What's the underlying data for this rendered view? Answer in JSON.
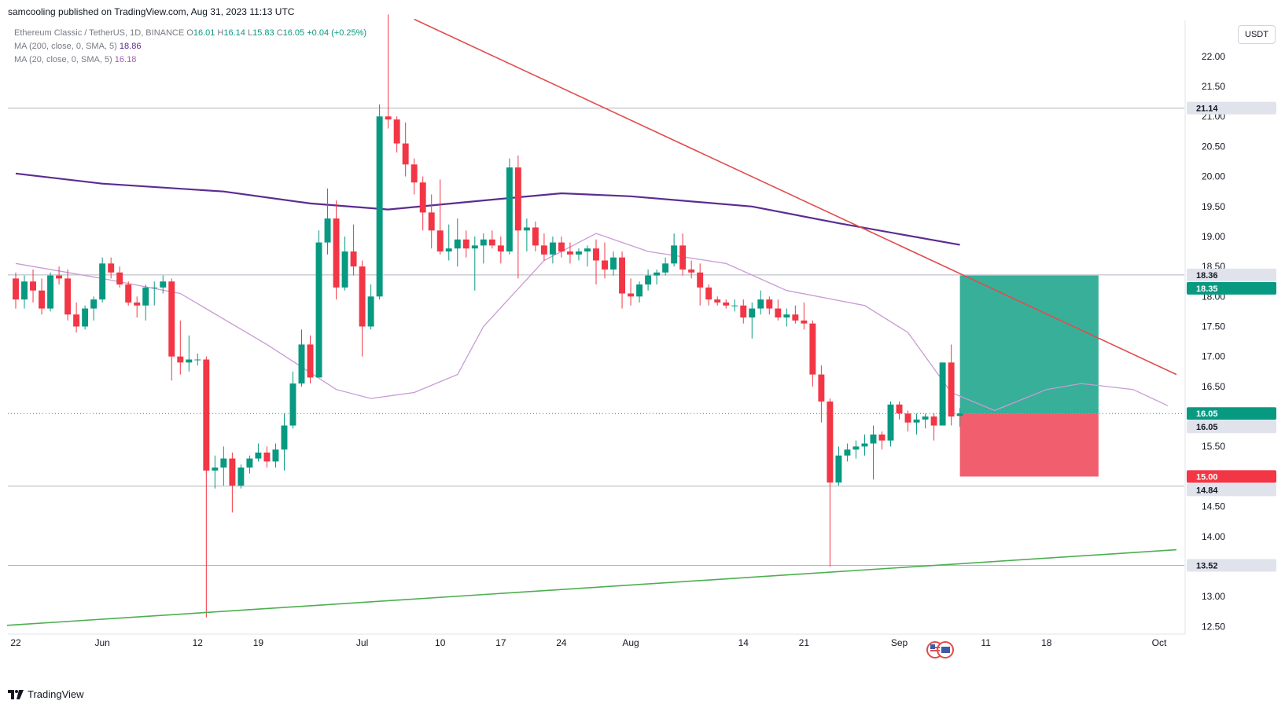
{
  "header": {
    "published": "samcooling published on TradingView.com, Aug 31, 2023 11:13 UTC"
  },
  "legend": {
    "symbol": "Ethereum Classic / TetherUS, 1D, BINANCE",
    "o_label": "O",
    "o": "16.01",
    "h_label": "H",
    "h": "16.14",
    "l_label": "L",
    "l": "15.83",
    "c_label": "C",
    "c": "16.05",
    "change": "+0.04 (+0.25%)",
    "ma200_label": "MA (200, close, 0, SMA, 5)",
    "ma200_value": "18.86",
    "ma20_label": "MA (20, close, 0, SMA, 5)",
    "ma20_value": "16.18"
  },
  "currency_button": "USDT",
  "footer": {
    "brand": "TradingView",
    "logo_icon": "tradingview-logo-icon",
    "event_icon": "us-eu-flags-event-icon"
  },
  "colors": {
    "up": "#089981",
    "down": "#f23645",
    "ma200": "#5b2c91",
    "ma20": "#c99bd6",
    "trend_down": "#e14d4d",
    "trend_up": "#4caf50",
    "profit": "#22a68e",
    "stop": "#f05566"
  },
  "chart_data": {
    "type": "candlestick",
    "x_tick_labels": [
      "22",
      "Jun",
      "12",
      "19",
      "Jul",
      "10",
      "17",
      "24",
      "Aug",
      "14",
      "21",
      "Sep",
      "11",
      "18",
      "Oct"
    ],
    "x_ticks": [
      "2023-05-22",
      "2023-06-01",
      "2023-06-12",
      "2023-06-19",
      "2023-07-01",
      "2023-07-10",
      "2023-07-17",
      "2023-07-24",
      "2023-08-01",
      "2023-08-14",
      "2023-08-21",
      "2023-09-01",
      "2023-09-11",
      "2023-09-18",
      "2023-10-01"
    ],
    "y_tick_labels": [
      "12.50",
      "13.00",
      "13.50",
      "14.00",
      "14.50",
      "15.00",
      "15.50",
      "16.00",
      "16.50",
      "17.00",
      "17.50",
      "18.00",
      "18.50",
      "19.00",
      "19.50",
      "20.00",
      "20.50",
      "21.00",
      "21.50",
      "22.00"
    ],
    "ylim": [
      12.4,
      22.6
    ],
    "xlim": [
      "2023-05-22",
      "2023-10-03"
    ],
    "horizontal_levels": [
      21.14,
      18.36,
      14.84,
      13.52
    ],
    "price_labels": [
      {
        "value": "21.14",
        "style": "level"
      },
      {
        "value": "18.36",
        "style": "level"
      },
      {
        "value": "18.35",
        "style": "target"
      },
      {
        "value": "16.05",
        "style": "last"
      },
      {
        "value": "16.05",
        "style": "level"
      },
      {
        "value": "15.00",
        "style": "stop"
      },
      {
        "value": "14.84",
        "style": "level"
      },
      {
        "value": "13.52",
        "style": "level"
      }
    ],
    "last_price": 16.05,
    "candles": [
      [
        "2023-05-22",
        18.3,
        18.4,
        17.8,
        17.95
      ],
      [
        "2023-05-23",
        17.95,
        18.35,
        17.8,
        18.25
      ],
      [
        "2023-05-24",
        18.25,
        18.45,
        17.9,
        18.1
      ],
      [
        "2023-05-25",
        18.1,
        18.3,
        17.7,
        17.8
      ],
      [
        "2023-05-26",
        17.8,
        18.4,
        17.75,
        18.35
      ],
      [
        "2023-05-27",
        18.35,
        18.5,
        18.2,
        18.3
      ],
      [
        "2023-05-28",
        18.3,
        18.45,
        17.6,
        17.7
      ],
      [
        "2023-05-29",
        17.7,
        17.9,
        17.4,
        17.5
      ],
      [
        "2023-05-30",
        17.5,
        17.85,
        17.45,
        17.8
      ],
      [
        "2023-05-31",
        17.8,
        18.0,
        17.6,
        17.95
      ],
      [
        "2023-06-01",
        17.95,
        18.65,
        17.9,
        18.55
      ],
      [
        "2023-06-02",
        18.55,
        18.65,
        18.3,
        18.4
      ],
      [
        "2023-06-03",
        18.4,
        18.5,
        18.15,
        18.2
      ],
      [
        "2023-06-04",
        18.2,
        18.25,
        17.85,
        17.9
      ],
      [
        "2023-06-05",
        17.9,
        18.0,
        17.65,
        17.85
      ],
      [
        "2023-06-06",
        17.85,
        18.2,
        17.6,
        18.15
      ],
      [
        "2023-06-07",
        18.15,
        18.25,
        17.85,
        18.15
      ],
      [
        "2023-06-08",
        18.15,
        18.35,
        18.05,
        18.25
      ],
      [
        "2023-06-09",
        18.25,
        18.3,
        16.6,
        17.0
      ],
      [
        "2023-06-10",
        17.0,
        17.6,
        16.7,
        16.9
      ],
      [
        "2023-06-11",
        16.9,
        17.35,
        16.75,
        16.95
      ],
      [
        "2023-06-12",
        16.95,
        17.05,
        16.85,
        16.95
      ],
      [
        "2023-06-13",
        16.95,
        17.0,
        12.65,
        15.1
      ],
      [
        "2023-06-14",
        15.1,
        15.35,
        14.8,
        15.15
      ],
      [
        "2023-06-15",
        15.15,
        15.5,
        14.85,
        15.3
      ],
      [
        "2023-06-16",
        15.3,
        15.4,
        14.4,
        14.85
      ],
      [
        "2023-06-17",
        14.85,
        15.2,
        14.8,
        15.15
      ],
      [
        "2023-06-18",
        15.15,
        15.35,
        15.05,
        15.3
      ],
      [
        "2023-06-19",
        15.3,
        15.55,
        15.25,
        15.4
      ],
      [
        "2023-06-20",
        15.4,
        15.5,
        15.15,
        15.25
      ],
      [
        "2023-06-21",
        15.25,
        15.55,
        15.15,
        15.45
      ],
      [
        "2023-06-22",
        15.45,
        16.05,
        15.1,
        15.85
      ],
      [
        "2023-06-23",
        15.85,
        16.75,
        15.8,
        16.55
      ],
      [
        "2023-06-24",
        16.55,
        17.45,
        16.5,
        17.2
      ],
      [
        "2023-06-25",
        17.2,
        17.35,
        16.55,
        16.65
      ],
      [
        "2023-06-26",
        16.65,
        19.1,
        16.65,
        18.9
      ],
      [
        "2023-06-27",
        18.9,
        19.8,
        18.7,
        19.3
      ],
      [
        "2023-06-28",
        19.3,
        19.6,
        17.95,
        18.15
      ],
      [
        "2023-06-29",
        18.15,
        19.0,
        18.1,
        18.75
      ],
      [
        "2023-06-30",
        18.75,
        19.2,
        18.35,
        18.5
      ],
      [
        "2023-07-01",
        18.5,
        18.6,
        17.0,
        17.5
      ],
      [
        "2023-07-02",
        17.5,
        18.2,
        17.45,
        18.0
      ],
      [
        "2023-07-03",
        18.0,
        21.2,
        17.95,
        21.0
      ],
      [
        "2023-07-04",
        21.0,
        22.7,
        20.8,
        20.95
      ],
      [
        "2023-07-05",
        20.95,
        21.0,
        20.4,
        20.55
      ],
      [
        "2023-07-06",
        20.55,
        20.9,
        20.0,
        20.2
      ],
      [
        "2023-07-07",
        20.2,
        20.3,
        19.7,
        19.9
      ],
      [
        "2023-07-08",
        19.9,
        20.0,
        19.1,
        19.4
      ],
      [
        "2023-07-09",
        19.4,
        19.7,
        18.8,
        19.1
      ],
      [
        "2023-07-10",
        19.1,
        19.95,
        18.7,
        18.75
      ],
      [
        "2023-07-11",
        18.75,
        19.2,
        18.6,
        18.8
      ],
      [
        "2023-07-12",
        18.8,
        19.3,
        18.5,
        18.95
      ],
      [
        "2023-07-13",
        18.95,
        19.1,
        18.65,
        18.8
      ],
      [
        "2023-07-14",
        18.8,
        19.0,
        18.1,
        18.85
      ],
      [
        "2023-07-15",
        18.85,
        19.05,
        18.55,
        18.95
      ],
      [
        "2023-07-16",
        18.95,
        19.1,
        18.8,
        18.85
      ],
      [
        "2023-07-17",
        18.85,
        19.0,
        18.55,
        18.75
      ],
      [
        "2023-07-18",
        18.75,
        20.3,
        18.7,
        20.15
      ],
      [
        "2023-07-19",
        20.15,
        20.35,
        18.3,
        19.1
      ],
      [
        "2023-07-20",
        19.1,
        19.3,
        18.75,
        19.15
      ],
      [
        "2023-07-21",
        19.15,
        19.25,
        18.75,
        18.85
      ],
      [
        "2023-07-22",
        18.85,
        19.05,
        18.6,
        18.7
      ],
      [
        "2023-07-23",
        18.7,
        19.0,
        18.55,
        18.9
      ],
      [
        "2023-07-24",
        18.9,
        19.0,
        18.65,
        18.75
      ],
      [
        "2023-07-25",
        18.75,
        18.9,
        18.55,
        18.7
      ],
      [
        "2023-07-26",
        18.7,
        18.8,
        18.6,
        18.75
      ],
      [
        "2023-07-27",
        18.75,
        18.85,
        18.5,
        18.8
      ],
      [
        "2023-07-28",
        18.8,
        18.95,
        18.2,
        18.6
      ],
      [
        "2023-07-29",
        18.6,
        18.9,
        18.3,
        18.45
      ],
      [
        "2023-07-30",
        18.45,
        18.75,
        18.35,
        18.65
      ],
      [
        "2023-07-31",
        18.65,
        18.75,
        17.8,
        18.05
      ],
      [
        "2023-08-01",
        18.05,
        18.3,
        17.85,
        18.0
      ],
      [
        "2023-08-02",
        18.0,
        18.25,
        17.9,
        18.2
      ],
      [
        "2023-08-03",
        18.2,
        18.45,
        18.1,
        18.35
      ],
      [
        "2023-08-04",
        18.35,
        18.45,
        18.2,
        18.4
      ],
      [
        "2023-08-05",
        18.4,
        18.65,
        18.35,
        18.55
      ],
      [
        "2023-08-06",
        18.55,
        19.05,
        18.5,
        18.85
      ],
      [
        "2023-08-07",
        18.85,
        19.05,
        18.35,
        18.45
      ],
      [
        "2023-08-08",
        18.45,
        18.6,
        18.3,
        18.4
      ],
      [
        "2023-08-09",
        18.4,
        18.55,
        17.85,
        18.15
      ],
      [
        "2023-08-10",
        18.15,
        18.2,
        17.85,
        17.95
      ],
      [
        "2023-08-11",
        17.95,
        18.0,
        17.85,
        17.9
      ],
      [
        "2023-08-12",
        17.9,
        17.95,
        17.8,
        17.85
      ],
      [
        "2023-08-13",
        17.85,
        17.95,
        17.75,
        17.85
      ],
      [
        "2023-08-14",
        17.85,
        17.95,
        17.55,
        17.65
      ],
      [
        "2023-08-15",
        17.65,
        17.9,
        17.3,
        17.8
      ],
      [
        "2023-08-16",
        17.8,
        18.1,
        17.7,
        17.95
      ],
      [
        "2023-08-17",
        17.95,
        18.0,
        17.7,
        17.8
      ],
      [
        "2023-08-18",
        17.8,
        17.95,
        17.6,
        17.65
      ],
      [
        "2023-08-19",
        17.65,
        17.8,
        17.5,
        17.7
      ],
      [
        "2023-08-20",
        17.7,
        17.85,
        17.55,
        17.6
      ],
      [
        "2023-08-21",
        17.6,
        17.9,
        17.45,
        17.55
      ],
      [
        "2023-08-22",
        17.55,
        17.6,
        16.5,
        16.7
      ],
      [
        "2023-08-23",
        16.7,
        16.85,
        15.9,
        16.25
      ],
      [
        "2023-08-24",
        16.25,
        16.3,
        13.5,
        14.9
      ],
      [
        "2023-08-25",
        14.9,
        15.5,
        14.85,
        15.35
      ],
      [
        "2023-08-26",
        15.35,
        15.55,
        15.25,
        15.45
      ],
      [
        "2023-08-27",
        15.45,
        15.6,
        15.3,
        15.5
      ],
      [
        "2023-08-28",
        15.5,
        15.7,
        15.35,
        15.55
      ],
      [
        "2023-08-29",
        15.55,
        15.85,
        14.95,
        15.7
      ],
      [
        "2023-08-30",
        15.7,
        15.75,
        15.45,
        15.6
      ],
      [
        "2023-08-31",
        15.6,
        16.25,
        15.5,
        16.2
      ],
      [
        "2023-09-01",
        16.2,
        16.25,
        15.95,
        16.05
      ],
      [
        "2023-09-02",
        16.05,
        16.1,
        15.75,
        15.9
      ],
      [
        "2023-09-03",
        15.9,
        16.05,
        15.7,
        15.95
      ],
      [
        "2023-09-04",
        15.95,
        16.05,
        15.8,
        16.0
      ],
      [
        "2023-09-05",
        16.0,
        16.05,
        15.6,
        15.85
      ],
      [
        "2023-09-06",
        15.85,
        16.8,
        15.85,
        16.9
      ],
      [
        "2023-09-07",
        16.9,
        17.2,
        15.85,
        16.0
      ],
      [
        "2023-09-08",
        16.01,
        16.14,
        15.83,
        16.05
      ]
    ],
    "ma200": [
      [
        "2023-05-22",
        20.05
      ],
      [
        "2023-06-01",
        19.88
      ],
      [
        "2023-06-15",
        19.75
      ],
      [
        "2023-06-25",
        19.55
      ],
      [
        "2023-07-04",
        19.45
      ],
      [
        "2023-07-15",
        19.6
      ],
      [
        "2023-07-24",
        19.72
      ],
      [
        "2023-08-01",
        19.67
      ],
      [
        "2023-08-15",
        19.5
      ],
      [
        "2023-08-25",
        19.22
      ],
      [
        "2023-09-08",
        18.86
      ]
    ],
    "ma20": [
      [
        "2023-05-22",
        18.55
      ],
      [
        "2023-06-01",
        18.3
      ],
      [
        "2023-06-10",
        18.05
      ],
      [
        "2023-06-20",
        17.2
      ],
      [
        "2023-06-28",
        16.45
      ],
      [
        "2023-07-02",
        16.3
      ],
      [
        "2023-07-07",
        16.4
      ],
      [
        "2023-07-12",
        16.7
      ],
      [
        "2023-07-15",
        17.5
      ],
      [
        "2023-07-22",
        18.6
      ],
      [
        "2023-07-28",
        19.05
      ],
      [
        "2023-08-03",
        18.75
      ],
      [
        "2023-08-12",
        18.55
      ],
      [
        "2023-08-19",
        18.1
      ],
      [
        "2023-08-28",
        17.85
      ],
      [
        "2023-09-02",
        17.4
      ],
      [
        "2023-09-07",
        16.4
      ],
      [
        "2023-09-12",
        16.1
      ],
      [
        "2023-09-18",
        16.45
      ],
      [
        "2023-09-22",
        16.55
      ],
      [
        "2023-09-28",
        16.45
      ],
      [
        "2023-10-02",
        16.18
      ]
    ],
    "trendlines": [
      {
        "name": "descending-resistance",
        "from": [
          "2023-07-07",
          22.62
        ],
        "to": [
          "2023-10-03",
          16.7
        ]
      },
      {
        "name": "ascending-support",
        "from": [
          "2023-05-21",
          12.52
        ],
        "to": [
          "2023-10-03",
          13.78
        ]
      }
    ],
    "position": {
      "start": "2023-09-08",
      "end": "2023-09-24",
      "entry": 16.05,
      "target": 18.35,
      "stop": 15.0
    }
  }
}
